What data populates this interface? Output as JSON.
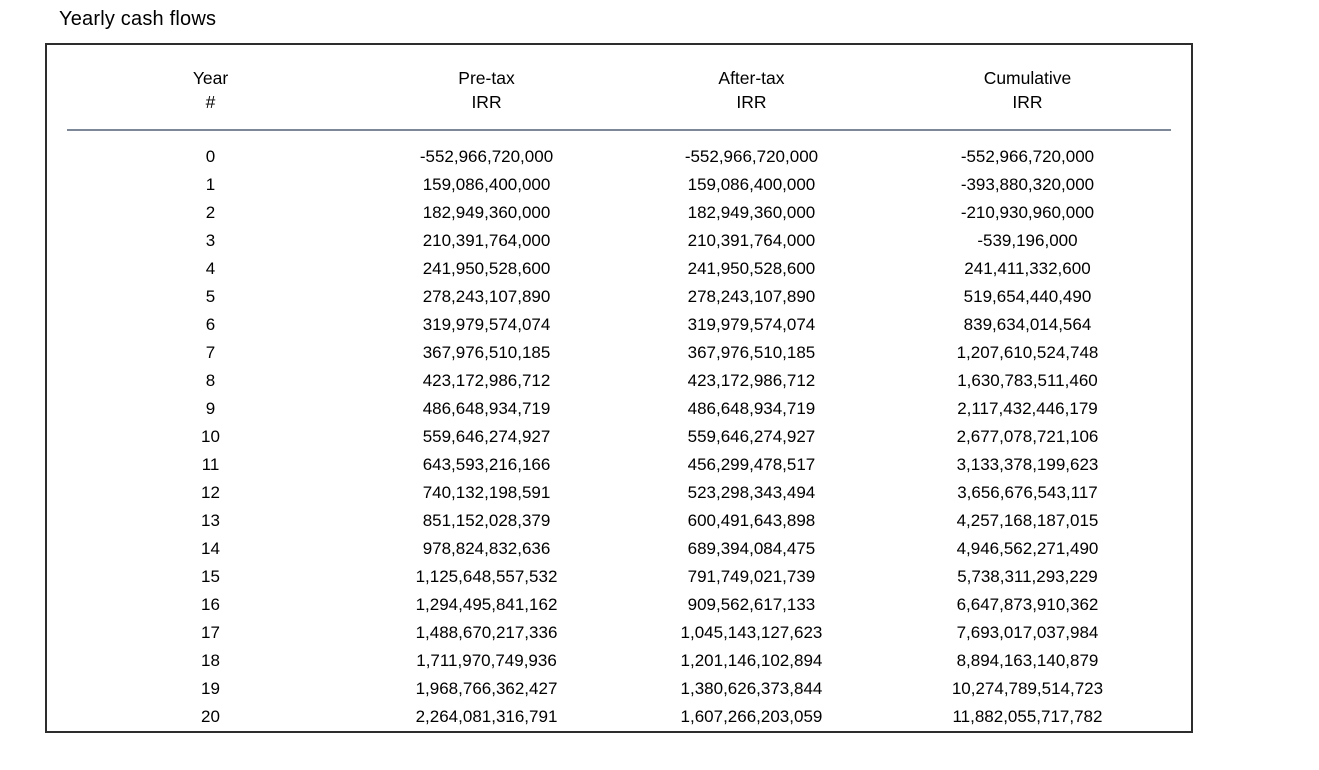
{
  "title": "Yearly cash flows",
  "colors": {
    "text": "#000000",
    "box_border": "#2d2d2d",
    "header_rule": "#7c8898",
    "background": "#ffffff"
  },
  "table": {
    "columns": [
      {
        "line1": "Year",
        "line2": "#"
      },
      {
        "line1": "Pre-tax",
        "line2": "IRR"
      },
      {
        "line1": "After-tax",
        "line2": "IRR"
      },
      {
        "line1": "Cumulative",
        "line2": "IRR"
      }
    ],
    "rows": [
      [
        "0",
        "-552,966,720,000",
        "-552,966,720,000",
        "-552,966,720,000"
      ],
      [
        "1",
        "159,086,400,000",
        "159,086,400,000",
        "-393,880,320,000"
      ],
      [
        "2",
        "182,949,360,000",
        "182,949,360,000",
        "-210,930,960,000"
      ],
      [
        "3",
        "210,391,764,000",
        "210,391,764,000",
        "-539,196,000"
      ],
      [
        "4",
        "241,950,528,600",
        "241,950,528,600",
        "241,411,332,600"
      ],
      [
        "5",
        "278,243,107,890",
        "278,243,107,890",
        "519,654,440,490"
      ],
      [
        "6",
        "319,979,574,074",
        "319,979,574,074",
        "839,634,014,564"
      ],
      [
        "7",
        "367,976,510,185",
        "367,976,510,185",
        "1,207,610,524,748"
      ],
      [
        "8",
        "423,172,986,712",
        "423,172,986,712",
        "1,630,783,511,460"
      ],
      [
        "9",
        "486,648,934,719",
        "486,648,934,719",
        "2,117,432,446,179"
      ],
      [
        "10",
        "559,646,274,927",
        "559,646,274,927",
        "2,677,078,721,106"
      ],
      [
        "11",
        "643,593,216,166",
        "456,299,478,517",
        "3,133,378,199,623"
      ],
      [
        "12",
        "740,132,198,591",
        "523,298,343,494",
        "3,656,676,543,117"
      ],
      [
        "13",
        "851,152,028,379",
        "600,491,643,898",
        "4,257,168,187,015"
      ],
      [
        "14",
        "978,824,832,636",
        "689,394,084,475",
        "4,946,562,271,490"
      ],
      [
        "15",
        "1,125,648,557,532",
        "791,749,021,739",
        "5,738,311,293,229"
      ],
      [
        "16",
        "1,294,495,841,162",
        "909,562,617,133",
        "6,647,873,910,362"
      ],
      [
        "17",
        "1,488,670,217,336",
        "1,045,143,127,623",
        "7,693,017,037,984"
      ],
      [
        "18",
        "1,711,970,749,936",
        "1,201,146,102,894",
        "8,894,163,140,879"
      ],
      [
        "19",
        "1,968,766,362,427",
        "1,380,626,373,844",
        "10,274,789,514,723"
      ],
      [
        "20",
        "2,264,081,316,791",
        "1,607,266,203,059",
        "11,882,055,717,782"
      ]
    ]
  }
}
